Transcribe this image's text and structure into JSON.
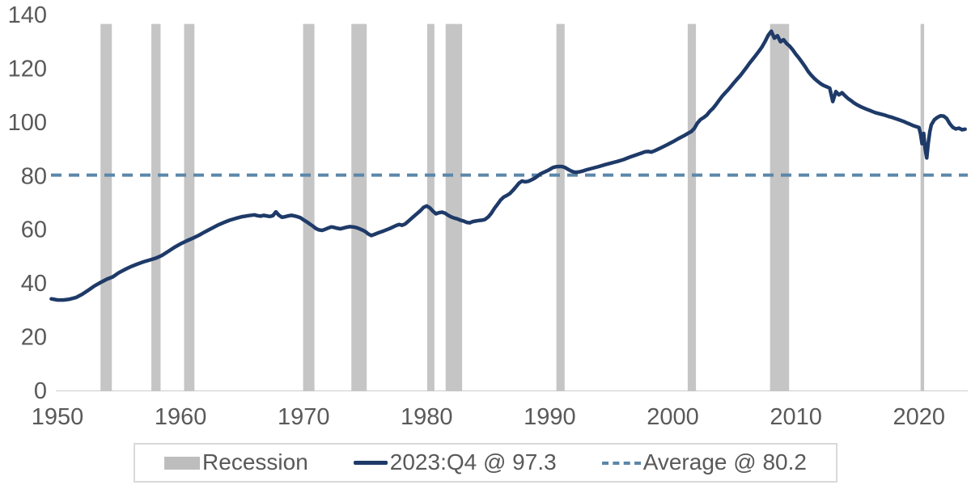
{
  "legend": {
    "recession_label": "Recession",
    "series_label": "2023:Q4 @ 97.3",
    "average_label": "Average @ 80.2"
  },
  "colors": {
    "series_line": "#1e3a68",
    "average_line": "#5b87a9",
    "recession_band": "#c5c5c5",
    "legend_swatch_gray": "#bdbdbd",
    "axis_text": "#595959",
    "axis_line": "#d9d9d9",
    "background": "#ffffff"
  },
  "chart_data": {
    "type": "line",
    "title": "",
    "xlabel": "",
    "ylabel": "",
    "grid": false,
    "legend_position": "bottom-center",
    "y_axis": {
      "min": 0,
      "max": 140,
      "step": 20,
      "ticks": [
        0,
        20,
        40,
        60,
        80,
        100,
        120,
        140
      ]
    },
    "x_axis": {
      "ticks": [
        1950,
        1960,
        1970,
        1980,
        1990,
        2000,
        2010,
        2020
      ],
      "min": 1949.5,
      "max": 2023.75
    },
    "average_line": {
      "label": "Average @ 80.2",
      "value": 80.2,
      "style": "dashed"
    },
    "recession_bands": [
      [
        1953.5,
        1954.42
      ],
      [
        1957.63,
        1958.38
      ],
      [
        1960.29,
        1961.13
      ],
      [
        1969.96,
        1970.88
      ],
      [
        1973.88,
        1975.13
      ],
      [
        1980.04,
        1980.63
      ],
      [
        1981.54,
        1982.88
      ],
      [
        1990.54,
        1991.21
      ],
      [
        2001.21,
        2001.88
      ],
      [
        2007.9,
        2009.45
      ],
      [
        2020.13,
        2020.42
      ]
    ],
    "band_top_value": 136.5,
    "series": [
      {
        "name": "2023:Q4 @ 97.3",
        "last_point": {
          "period": "2023:Q4",
          "value": 97.3
        },
        "points": [
          [
            1949.5,
            34.1
          ],
          [
            1949.75,
            33.9
          ],
          [
            1950.0,
            33.7
          ],
          [
            1950.5,
            33.7
          ],
          [
            1951.0,
            34.0
          ],
          [
            1951.5,
            34.6
          ],
          [
            1952.0,
            35.8
          ],
          [
            1952.5,
            37.3
          ],
          [
            1953.0,
            38.9
          ],
          [
            1953.5,
            40.2
          ],
          [
            1954.0,
            41.4
          ],
          [
            1954.5,
            42.3
          ],
          [
            1955.0,
            43.9
          ],
          [
            1955.5,
            45.1
          ],
          [
            1956.0,
            46.2
          ],
          [
            1956.5,
            47.1
          ],
          [
            1957.0,
            47.9
          ],
          [
            1957.5,
            48.6
          ],
          [
            1958.0,
            49.3
          ],
          [
            1958.5,
            50.3
          ],
          [
            1959.0,
            51.8
          ],
          [
            1959.5,
            53.3
          ],
          [
            1960.0,
            54.6
          ],
          [
            1960.5,
            55.7
          ],
          [
            1961.0,
            56.7
          ],
          [
            1961.5,
            57.8
          ],
          [
            1962.0,
            59.1
          ],
          [
            1962.5,
            60.3
          ],
          [
            1963.0,
            61.5
          ],
          [
            1963.5,
            62.5
          ],
          [
            1964.0,
            63.4
          ],
          [
            1964.5,
            64.1
          ],
          [
            1965.0,
            64.7
          ],
          [
            1965.5,
            65.1
          ],
          [
            1966.0,
            65.4
          ],
          [
            1966.25,
            65.1
          ],
          [
            1966.5,
            64.9
          ],
          [
            1966.75,
            65.2
          ],
          [
            1967.0,
            65.0
          ],
          [
            1967.25,
            64.8
          ],
          [
            1967.5,
            65.1
          ],
          [
            1967.75,
            66.5
          ],
          [
            1968.0,
            65.2
          ],
          [
            1968.25,
            64.5
          ],
          [
            1968.5,
            64.7
          ],
          [
            1968.75,
            65.0
          ],
          [
            1969.0,
            65.2
          ],
          [
            1969.25,
            65.0
          ],
          [
            1969.5,
            64.7
          ],
          [
            1969.75,
            64.3
          ],
          [
            1970.0,
            63.5
          ],
          [
            1970.25,
            62.8
          ],
          [
            1970.5,
            62.0
          ],
          [
            1970.75,
            61.2
          ],
          [
            1971.0,
            60.3
          ],
          [
            1971.25,
            59.8
          ],
          [
            1971.5,
            59.6
          ],
          [
            1971.75,
            60.0
          ],
          [
            1972.0,
            60.5
          ],
          [
            1972.25,
            60.9
          ],
          [
            1972.5,
            60.7
          ],
          [
            1972.75,
            60.4
          ],
          [
            1973.0,
            60.2
          ],
          [
            1973.25,
            60.5
          ],
          [
            1973.5,
            60.8
          ],
          [
            1973.75,
            61.0
          ],
          [
            1974.0,
            60.9
          ],
          [
            1974.25,
            60.7
          ],
          [
            1974.5,
            60.3
          ],
          [
            1974.75,
            59.8
          ],
          [
            1975.0,
            59.2
          ],
          [
            1975.25,
            58.3
          ],
          [
            1975.5,
            57.7
          ],
          [
            1975.75,
            58.1
          ],
          [
            1976.0,
            58.6
          ],
          [
            1976.5,
            59.4
          ],
          [
            1977.0,
            60.3
          ],
          [
            1977.5,
            61.4
          ],
          [
            1977.75,
            61.8
          ],
          [
            1978.0,
            61.5
          ],
          [
            1978.25,
            62.0
          ],
          [
            1978.5,
            63.0
          ],
          [
            1978.75,
            64.0
          ],
          [
            1979.0,
            65.0
          ],
          [
            1979.25,
            66.0
          ],
          [
            1979.5,
            67.0
          ],
          [
            1979.75,
            68.2
          ],
          [
            1980.0,
            68.7
          ],
          [
            1980.25,
            68.0
          ],
          [
            1980.5,
            66.8
          ],
          [
            1980.75,
            65.8
          ],
          [
            1981.0,
            66.2
          ],
          [
            1981.25,
            66.4
          ],
          [
            1981.5,
            66.0
          ],
          [
            1981.75,
            65.2
          ],
          [
            1982.0,
            64.6
          ],
          [
            1982.25,
            64.2
          ],
          [
            1982.5,
            63.9
          ],
          [
            1982.75,
            63.4
          ],
          [
            1983.0,
            63.1
          ],
          [
            1983.25,
            62.6
          ],
          [
            1983.5,
            62.4
          ],
          [
            1983.75,
            62.9
          ],
          [
            1984.0,
            63.1
          ],
          [
            1984.25,
            63.3
          ],
          [
            1984.5,
            63.4
          ],
          [
            1984.75,
            63.7
          ],
          [
            1985.0,
            64.6
          ],
          [
            1985.25,
            66.0
          ],
          [
            1985.5,
            67.8
          ],
          [
            1985.75,
            69.3
          ],
          [
            1986.0,
            70.9
          ],
          [
            1986.25,
            72.0
          ],
          [
            1986.5,
            72.6
          ],
          [
            1986.75,
            73.3
          ],
          [
            1987.0,
            74.5
          ],
          [
            1987.25,
            75.8
          ],
          [
            1987.5,
            77.2
          ],
          [
            1987.75,
            78.0
          ],
          [
            1988.0,
            77.7
          ],
          [
            1988.25,
            77.9
          ],
          [
            1988.5,
            78.4
          ],
          [
            1988.75,
            79.0
          ],
          [
            1989.0,
            79.8
          ],
          [
            1989.25,
            80.7
          ],
          [
            1989.5,
            81.2
          ],
          [
            1989.75,
            81.7
          ],
          [
            1990.0,
            82.3
          ],
          [
            1990.25,
            83.0
          ],
          [
            1990.5,
            83.3
          ],
          [
            1990.75,
            83.4
          ],
          [
            1991.0,
            83.4
          ],
          [
            1991.25,
            83.0
          ],
          [
            1991.5,
            82.3
          ],
          [
            1991.75,
            81.7
          ],
          [
            1992.0,
            81.3
          ],
          [
            1992.25,
            81.3
          ],
          [
            1992.5,
            81.5
          ],
          [
            1992.75,
            81.8
          ],
          [
            1993.0,
            82.2
          ],
          [
            1993.5,
            82.8
          ],
          [
            1994.0,
            83.4
          ],
          [
            1994.5,
            84.1
          ],
          [
            1995.0,
            84.7
          ],
          [
            1995.5,
            85.3
          ],
          [
            1996.0,
            86.0
          ],
          [
            1996.5,
            86.9
          ],
          [
            1997.0,
            87.7
          ],
          [
            1997.5,
            88.5
          ],
          [
            1997.75,
            88.9
          ],
          [
            1998.0,
            89.0
          ],
          [
            1998.25,
            88.8
          ],
          [
            1998.5,
            89.2
          ],
          [
            1999.0,
            90.3
          ],
          [
            1999.5,
            91.4
          ],
          [
            2000.0,
            92.6
          ],
          [
            2000.5,
            93.9
          ],
          [
            2001.0,
            95.1
          ],
          [
            2001.25,
            95.8
          ],
          [
            2001.5,
            96.4
          ],
          [
            2001.75,
            97.6
          ],
          [
            2002.0,
            99.6
          ],
          [
            2002.25,
            100.9
          ],
          [
            2002.5,
            101.6
          ],
          [
            2002.75,
            102.5
          ],
          [
            2003.0,
            103.9
          ],
          [
            2003.25,
            105.0
          ],
          [
            2003.5,
            106.4
          ],
          [
            2003.75,
            108.0
          ],
          [
            2004.0,
            109.5
          ],
          [
            2004.25,
            110.8
          ],
          [
            2004.5,
            112.0
          ],
          [
            2004.75,
            113.4
          ],
          [
            2005.0,
            114.8
          ],
          [
            2005.25,
            116.1
          ],
          [
            2005.5,
            117.4
          ],
          [
            2005.75,
            118.9
          ],
          [
            2006.0,
            120.4
          ],
          [
            2006.25,
            122.0
          ],
          [
            2006.5,
            123.4
          ],
          [
            2006.75,
            124.9
          ],
          [
            2007.0,
            126.4
          ],
          [
            2007.25,
            128.0
          ],
          [
            2007.5,
            130.0
          ],
          [
            2007.75,
            132.3
          ],
          [
            2008.0,
            133.8
          ],
          [
            2008.25,
            131.2
          ],
          [
            2008.5,
            132.1
          ],
          [
            2008.75,
            129.9
          ],
          [
            2009.0,
            130.6
          ],
          [
            2009.25,
            129.2
          ],
          [
            2009.5,
            128.2
          ],
          [
            2009.75,
            126.8
          ],
          [
            2010.0,
            125.2
          ],
          [
            2010.25,
            123.8
          ],
          [
            2010.5,
            122.2
          ],
          [
            2010.75,
            120.6
          ],
          [
            2011.0,
            118.8
          ],
          [
            2011.25,
            117.4
          ],
          [
            2011.5,
            116.2
          ],
          [
            2011.75,
            115.2
          ],
          [
            2012.0,
            114.3
          ],
          [
            2012.25,
            113.6
          ],
          [
            2012.5,
            113.1
          ],
          [
            2012.75,
            112.6
          ],
          [
            2013.0,
            107.6
          ],
          [
            2013.25,
            111.3
          ],
          [
            2013.5,
            110.1
          ],
          [
            2013.75,
            110.9
          ],
          [
            2014.0,
            109.7
          ],
          [
            2014.25,
            108.7
          ],
          [
            2014.5,
            107.9
          ],
          [
            2014.75,
            107.0
          ],
          [
            2015.0,
            106.3
          ],
          [
            2015.25,
            105.7
          ],
          [
            2015.5,
            105.2
          ],
          [
            2015.75,
            104.7
          ],
          [
            2016.0,
            104.3
          ],
          [
            2016.25,
            103.8
          ],
          [
            2016.5,
            103.4
          ],
          [
            2016.75,
            103.1
          ],
          [
            2017.0,
            102.8
          ],
          [
            2017.25,
            102.5
          ],
          [
            2017.5,
            102.1
          ],
          [
            2017.75,
            101.8
          ],
          [
            2018.0,
            101.4
          ],
          [
            2018.25,
            101.0
          ],
          [
            2018.5,
            100.6
          ],
          [
            2018.75,
            100.2
          ],
          [
            2019.0,
            99.7
          ],
          [
            2019.25,
            99.2
          ],
          [
            2019.5,
            98.7
          ],
          [
            2019.75,
            98.3
          ],
          [
            2020.0,
            97.9
          ],
          [
            2020.13,
            95.5
          ],
          [
            2020.25,
            91.9
          ],
          [
            2020.38,
            95.7
          ],
          [
            2020.5,
            90.0
          ],
          [
            2020.63,
            86.6
          ],
          [
            2020.75,
            92.0
          ],
          [
            2020.88,
            96.3
          ],
          [
            2021.0,
            98.9
          ],
          [
            2021.25,
            100.8
          ],
          [
            2021.5,
            101.7
          ],
          [
            2021.75,
            102.3
          ],
          [
            2022.0,
            102.2
          ],
          [
            2022.25,
            101.3
          ],
          [
            2022.5,
            99.4
          ],
          [
            2022.75,
            98.0
          ],
          [
            2023.0,
            97.4
          ],
          [
            2023.25,
            97.7
          ],
          [
            2023.5,
            97.1
          ],
          [
            2023.75,
            97.3
          ]
        ]
      }
    ]
  }
}
